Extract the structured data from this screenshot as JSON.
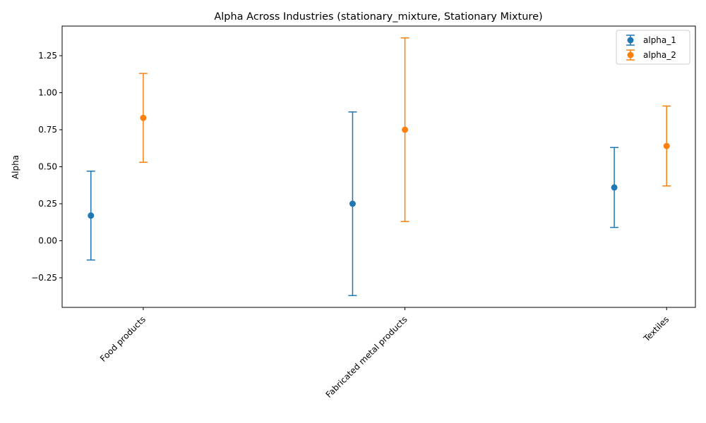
{
  "chart_data": {
    "type": "scatter",
    "title": "Alpha Across Industries (stationary_mixture, Stationary Mixture)",
    "xlabel": "",
    "ylabel": "Alpha",
    "categories": [
      "Food products",
      "Fabricated metal products",
      "Textiles"
    ],
    "ylim": [
      -0.45,
      1.45
    ],
    "yticks": [
      -0.25,
      0.0,
      0.25,
      0.5,
      0.75,
      1.0,
      1.25
    ],
    "ytick_labels": [
      "−0.25",
      "0.00",
      "0.25",
      "0.50",
      "0.75",
      "1.00",
      "1.25"
    ],
    "grid": false,
    "legend_position": "top-right",
    "series": [
      {
        "name": "alpha_1",
        "color": "#1f77b4",
        "values": [
          0.17,
          0.25,
          0.36
        ],
        "lower": [
          -0.13,
          -0.37,
          0.09
        ],
        "upper": [
          0.47,
          0.87,
          0.63
        ]
      },
      {
        "name": "alpha_2",
        "color": "#ff7f0e",
        "values": [
          0.83,
          0.75,
          0.64
        ],
        "lower": [
          0.53,
          0.13,
          0.37
        ],
        "upper": [
          1.13,
          1.37,
          0.91
        ]
      }
    ]
  }
}
